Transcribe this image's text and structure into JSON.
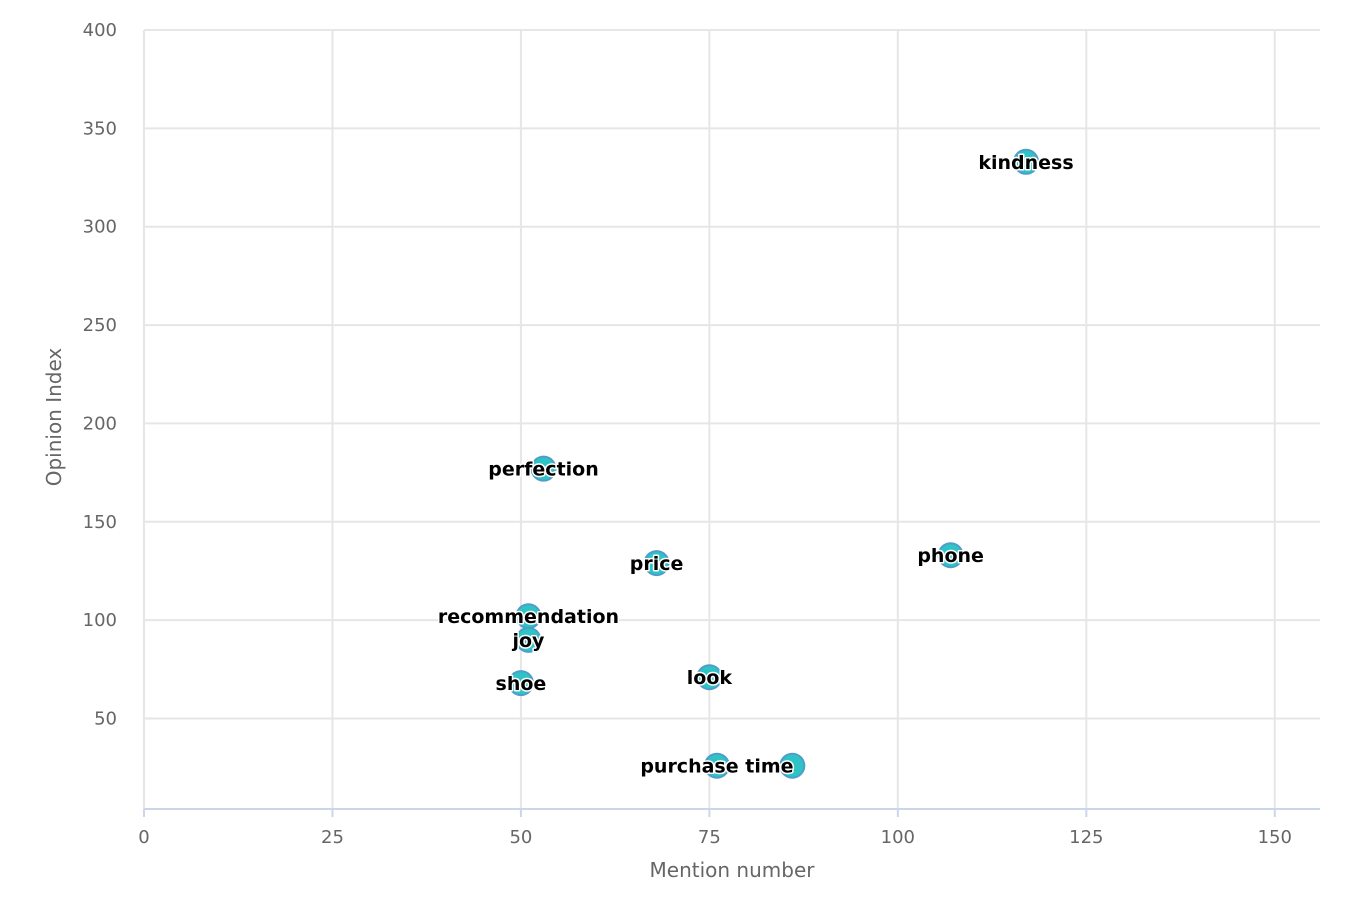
{
  "chart_data": {
    "type": "scatter",
    "xlabel": "Mention number",
    "ylabel": "Opinion Index",
    "xlim": [
      0,
      156
    ],
    "ylim": [
      4,
      400
    ],
    "x_ticks": [
      0,
      25,
      50,
      75,
      100,
      125,
      150
    ],
    "y_ticks": [
      50,
      100,
      150,
      200,
      250,
      300,
      350,
      400
    ],
    "grid": true,
    "marker_color": "#2ec4c6",
    "marker_border_color": "#4f9ec9",
    "points": [
      {
        "label": "kindness",
        "x": 117,
        "y": 333
      },
      {
        "label": "perfection",
        "x": 53,
        "y": 177
      },
      {
        "label": "phone",
        "x": 107,
        "y": 133
      },
      {
        "label": "price",
        "x": 68,
        "y": 129
      },
      {
        "label": "recommendation",
        "x": 51,
        "y": 102
      },
      {
        "label": "joy",
        "x": 51,
        "y": 90
      },
      {
        "label": "look",
        "x": 75,
        "y": 71
      },
      {
        "label": "shoe",
        "x": 50,
        "y": 68
      },
      {
        "label": "purchase time",
        "x": 76,
        "y": 26
      },
      {
        "label": "",
        "x": 86,
        "y": 26
      }
    ]
  }
}
